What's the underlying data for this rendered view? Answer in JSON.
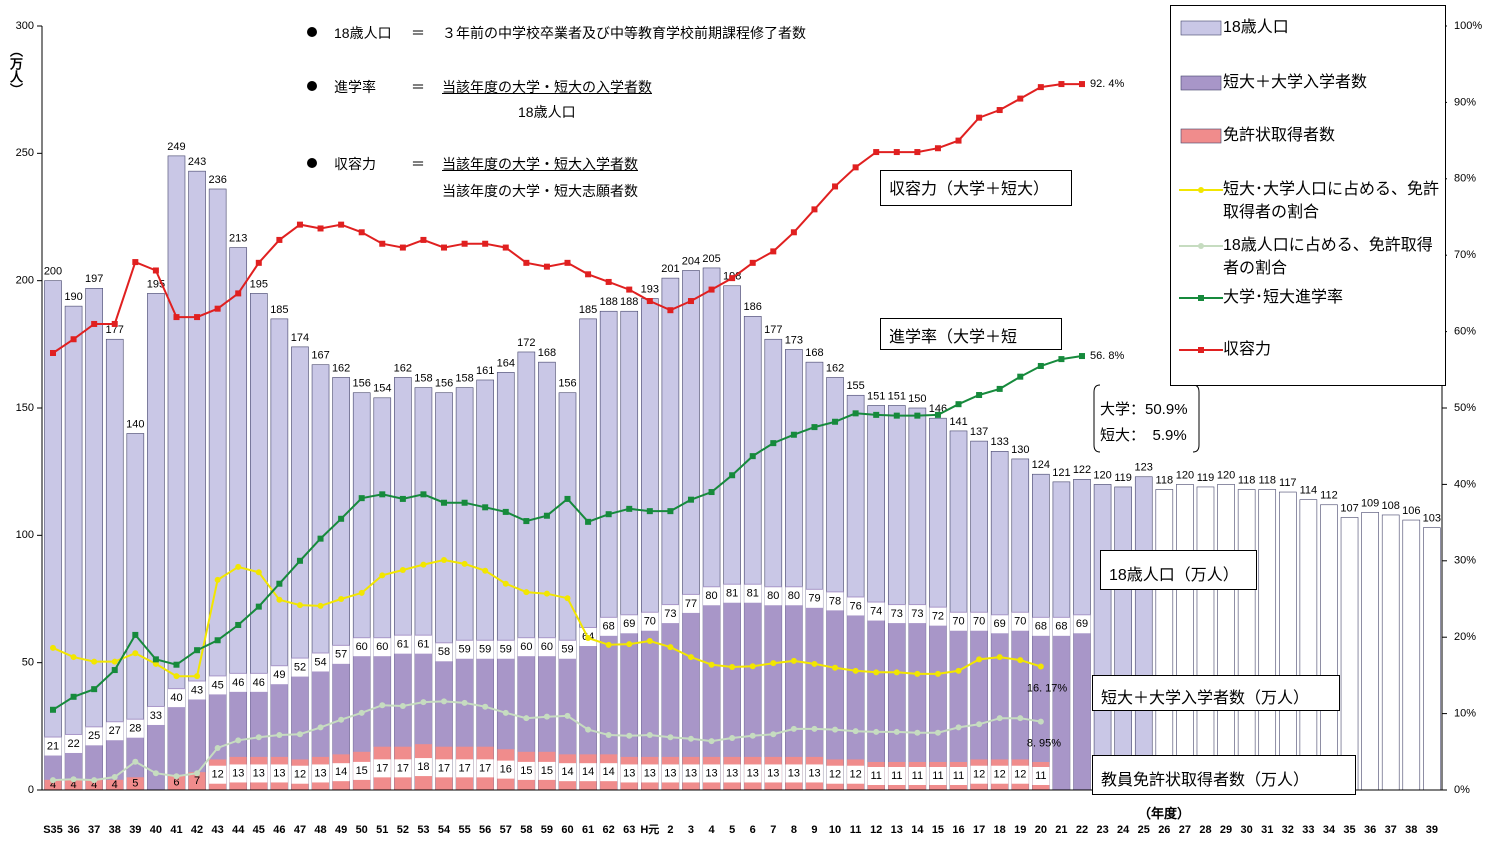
{
  "chart_data": {
    "type": "bar-line",
    "y_axis_label": "（万人）",
    "x_axis_label": "（年度）",
    "categories": [
      "S35",
      "36",
      "37",
      "38",
      "39",
      "40",
      "41",
      "42",
      "43",
      "44",
      "45",
      "46",
      "47",
      "48",
      "49",
      "50",
      "51",
      "52",
      "53",
      "54",
      "55",
      "56",
      "57",
      "58",
      "59",
      "60",
      "61",
      "62",
      "63",
      "H元",
      "2",
      "3",
      "4",
      "5",
      "6",
      "7",
      "8",
      "9",
      "10",
      "11",
      "12",
      "13",
      "14",
      "15",
      "16",
      "17",
      "18",
      "19",
      "20",
      "21",
      "22",
      "23",
      "24",
      "25",
      "26",
      "27",
      "28",
      "29",
      "30",
      "31",
      "32",
      "33",
      "34",
      "35",
      "36",
      "37",
      "38",
      "39"
    ],
    "ylim": [
      0,
      300
    ],
    "yticks": [
      0,
      50,
      100,
      150,
      200,
      250,
      300
    ],
    "y2lim": [
      0,
      100
    ],
    "y2ticks": [
      {
        "value": 0,
        "label": "0%"
      },
      {
        "value": 10,
        "label": "10%"
      },
      {
        "value": 20,
        "label": "20%"
      },
      {
        "value": 30,
        "label": "30%"
      },
      {
        "value": 40,
        "label": "40%"
      },
      {
        "value": 50,
        "label": "50%"
      },
      {
        "value": 60,
        "label": "60%"
      },
      {
        "value": 70,
        "label": "70%"
      },
      {
        "value": 80,
        "label": "80%"
      },
      {
        "value": 90,
        "label": "90%"
      },
      {
        "value": 100,
        "label": "100%"
      }
    ],
    "series": [
      {
        "name": "18歳人口",
        "type": "bar",
        "color": "#c9c7e6",
        "colors": [
          "#c9c7e6",
          "#c9c7e6",
          "#c9c7e6",
          "#c9c7e6",
          "#c9c7e6",
          "#c9c7e6",
          "#c9c7e6",
          "#c9c7e6",
          "#c9c7e6",
          "#c9c7e6",
          "#c9c7e6",
          "#c9c7e6",
          "#c9c7e6",
          "#c9c7e6",
          "#c9c7e6",
          "#c9c7e6",
          "#c9c7e6",
          "#c9c7e6",
          "#c9c7e6",
          "#c9c7e6",
          "#c9c7e6",
          "#c9c7e6",
          "#c9c7e6",
          "#c9c7e6",
          "#c9c7e6",
          "#c9c7e6",
          "#c9c7e6",
          "#c9c7e6",
          "#c9c7e6",
          "#c9c7e6",
          "#c9c7e6",
          "#c9c7e6",
          "#c9c7e6",
          "#c9c7e6",
          "#c9c7e6",
          "#c9c7e6",
          "#c9c7e6",
          "#c9c7e6",
          "#c9c7e6",
          "#c9c7e6",
          "#c9c7e6",
          "#c9c7e6",
          "#c9c7e6",
          "#c9c7e6",
          "#c9c7e6",
          "#c9c7e6",
          "#c9c7e6",
          "#c9c7e6",
          "#c9c7e6",
          "#c9c7e6",
          "#c9c7e6",
          "#c9c7e6",
          "#c9c7e6",
          "#c9c7e6",
          "#ffffff",
          "#ffffff",
          "#ffffff",
          "#ffffff",
          "#ffffff",
          "#ffffff",
          "#ffffff",
          "#ffffff",
          "#ffffff",
          "#ffffff",
          "#ffffff",
          "#ffffff",
          "#ffffff",
          "#ffffff"
        ],
        "values": [
          200,
          190,
          197,
          177,
          140,
          195,
          249,
          243,
          236,
          213,
          195,
          185,
          174,
          167,
          162,
          156,
          154,
          162,
          158,
          156,
          158,
          161,
          164,
          172,
          168,
          156,
          185,
          188,
          188,
          193,
          201,
          204,
          205,
          198,
          186,
          177,
          173,
          168,
          162,
          155,
          151,
          151,
          150,
          146,
          141,
          137,
          133,
          130,
          124,
          121,
          122,
          120,
          119,
          123,
          118,
          120,
          119,
          120,
          118,
          118,
          117,
          114,
          112,
          107,
          109,
          108,
          106,
          103
        ]
      },
      {
        "name": "短大＋大学入学者数",
        "type": "bar",
        "color": "#a896c8",
        "values": [
          21,
          22,
          25,
          27,
          28,
          33,
          40,
          43,
          45,
          46,
          46,
          49,
          52,
          54,
          57,
          60,
          60,
          61,
          61,
          58,
          59,
          59,
          59,
          60,
          60,
          59,
          64,
          68,
          69,
          70,
          73,
          77,
          80,
          81,
          81,
          80,
          80,
          79,
          78,
          76,
          74,
          73,
          73,
          72,
          70,
          70,
          69,
          70,
          68,
          68,
          69,
          null,
          null,
          null,
          null,
          null,
          null,
          null,
          null,
          null,
          null,
          null,
          null,
          null,
          null,
          null,
          null,
          null
        ]
      },
      {
        "name": "免許状取得者数",
        "type": "bar",
        "color": "#f08c8c",
        "values": [
          4,
          4,
          4,
          4,
          5,
          null,
          6,
          7,
          12,
          13,
          13,
          13,
          12,
          13,
          14,
          15,
          17,
          17,
          18,
          17,
          17,
          17,
          16,
          15,
          15,
          14,
          14,
          14,
          13,
          13,
          13,
          13,
          13,
          13,
          13,
          13,
          13,
          13,
          12,
          12,
          11,
          11,
          11,
          11,
          11,
          12,
          12,
          12,
          11,
          null,
          null,
          null,
          null,
          null,
          null,
          null,
          null,
          null,
          null,
          null,
          null,
          null,
          null,
          null,
          null,
          null,
          null,
          null
        ]
      },
      {
        "name": "短大･大学人口に占める、免許取得者の割合",
        "type": "line",
        "axis": "y2",
        "color": "#f2e600",
        "marker": "circle",
        "end_label": "16. 17%",
        "values": [
          18.6,
          17.4,
          16.8,
          16.8,
          17.9,
          16.5,
          14.9,
          14.9,
          27.5,
          29.2,
          28.5,
          24.9,
          24.2,
          24.1,
          25,
          25.8,
          28.1,
          28.8,
          29.5,
          30.1,
          29.6,
          28.7,
          27,
          25.9,
          25.7,
          25.1,
          19.9,
          19,
          19.1,
          19.5,
          18.7,
          17.4,
          16.4,
          16.1,
          16.2,
          16.6,
          16.9,
          16.5,
          16,
          15.6,
          15.4,
          15.4,
          15.2,
          15.2,
          15.6,
          17.1,
          17.4,
          17,
          16.17,
          null,
          null,
          null,
          null,
          null,
          null,
          null,
          null,
          null,
          null,
          null,
          null,
          null,
          null,
          null,
          null,
          null,
          null,
          null
        ]
      },
      {
        "name": "18歳人口に占める、免許取得者の割合",
        "type": "line",
        "axis": "y2",
        "color": "#c6dcc0",
        "marker": "circle",
        "end_label": "8. 95%",
        "values": [
          1.3,
          1.4,
          1.3,
          1.7,
          3.7,
          2.2,
          1.8,
          2.2,
          5.5,
          6.5,
          6.9,
          7.2,
          7.3,
          8.2,
          9.2,
          10.1,
          11.1,
          11,
          11.5,
          11.6,
          11.4,
          10.9,
          10.1,
          9.4,
          9.6,
          9.7,
          7.9,
          7.2,
          7.1,
          7.2,
          6.9,
          6.7,
          6.4,
          6.8,
          7.1,
          7.3,
          8,
          8,
          7.9,
          7.7,
          7.6,
          7.6,
          7.5,
          7.5,
          8.2,
          8.6,
          9.4,
          9.4,
          8.95,
          null,
          null,
          null,
          null,
          null,
          null,
          null,
          null,
          null,
          null,
          null,
          null,
          null,
          null,
          null,
          null,
          null,
          null,
          null
        ]
      },
      {
        "name": "大学･短大進学率",
        "type": "line",
        "axis": "y2",
        "color": "#168a3c",
        "marker": "square",
        "end_label": "56. 8%",
        "values": [
          10.5,
          12.2,
          13.2,
          15.7,
          20.3,
          17.1,
          16.4,
          18.3,
          19.6,
          21.6,
          24,
          27,
          30,
          32.9,
          35.5,
          38.2,
          38.7,
          38.1,
          38.7,
          37.6,
          37.6,
          37,
          36.4,
          35.2,
          35.9,
          38.1,
          35.1,
          36.1,
          36.8,
          36.5,
          36.5,
          38,
          39,
          41.2,
          43.7,
          45.4,
          46.5,
          47.5,
          48.2,
          49.3,
          49.1,
          49,
          49,
          49.1,
          50.5,
          51.7,
          52.5,
          54.1,
          55.5,
          56.4,
          56.8,
          null,
          null,
          null,
          null,
          null,
          null,
          null,
          null,
          null,
          null,
          null,
          null,
          null,
          null,
          null,
          null,
          null
        ]
      },
      {
        "name": "収容力",
        "type": "line",
        "axis": "y2",
        "color": "#e02020",
        "marker": "square",
        "end_label": "92. 4%",
        "values": [
          57.2,
          59,
          61,
          61,
          69.1,
          68,
          61.9,
          61.9,
          63,
          65,
          69,
          72,
          74,
          73.5,
          74,
          73,
          71.5,
          71,
          72,
          71,
          71.5,
          71.5,
          71,
          69,
          68.5,
          69,
          67.5,
          66.5,
          65.5,
          64,
          62.8,
          64,
          65.5,
          67,
          69,
          70.5,
          73,
          76,
          79,
          81.5,
          83.5,
          83.5,
          83.5,
          84,
          85,
          88,
          89,
          90.5,
          92,
          92.4,
          92.4,
          null,
          null,
          null,
          null,
          null,
          null,
          null,
          null,
          null,
          null,
          null,
          null,
          null,
          null,
          null,
          null,
          null
        ]
      }
    ],
    "definitions": [
      {
        "term": "18歳人口",
        "eq": "＝",
        "definition": "３年前の中学校卒業者及び中等教育学校前期課程修了者数"
      },
      {
        "term": "進学率",
        "eq": "＝",
        "numerator": "当該年度の大学・短大の入学者数",
        "denominator": "18歳人口"
      },
      {
        "term": "収容力",
        "eq": "＝",
        "numerator": "当該年度の大学・短大入学者数",
        "denominator": "当該年度の大学・短大志願者数"
      }
    ],
    "annotations": {
      "capacity_box": "収容力（大学＋短大）",
      "rate_box": "進学率（大学＋短",
      "breakdown": [
        "大学：50.9%",
        "短大：　5.9%"
      ],
      "population_box": "18歳人口（万人）",
      "entrants_box": "短大＋大学入学者数（万人）",
      "license_box": "教員免許状取得者数（万人）"
    }
  }
}
